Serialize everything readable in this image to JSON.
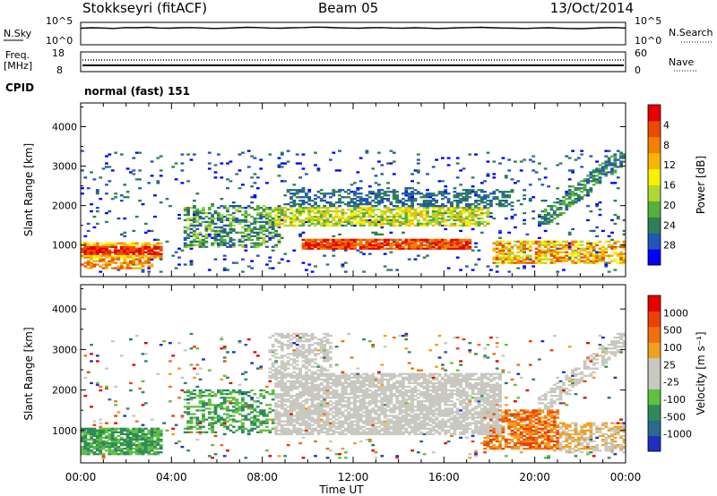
{
  "header": {
    "station": "Stokkseyri (fitACF)",
    "beam": "Beam 05",
    "date": "13/Oct/2014"
  },
  "chart_data": [
    {
      "type": "line",
      "left_label": "N.Sky",
      "right_label": "N.Search",
      "left_ticks": [
        "10^5",
        "10^0"
      ],
      "right_ticks": [
        "10^5",
        "10^0"
      ],
      "series": [
        {
          "values": [
            0.74,
            0.76,
            0.75,
            0.73,
            0.77,
            0.76,
            0.78,
            0.75,
            0.74,
            0.76,
            0.77,
            0.75,
            0.73,
            0.74,
            0.76,
            0.78,
            0.77,
            0.75,
            0.74,
            0.76,
            0.77,
            0.79,
            0.78,
            0.76,
            0.75,
            0.74,
            0.76,
            0.77,
            0.75,
            0.74,
            0.76,
            0.75,
            0.73,
            0.74,
            0.76,
            0.77,
            0.78,
            0.76,
            0.75,
            0.74,
            0.73,
            0.75,
            0.76,
            0.74,
            0.73,
            0.72,
            0.74,
            0.76,
            0.77,
            0.75
          ]
        }
      ]
    },
    {
      "type": "line",
      "left_label": "Freq.",
      "left_unit": "[MHz]",
      "right_label": "Nave",
      "left_ticks": [
        "18",
        "8"
      ],
      "right_ticks": [
        "60",
        "0"
      ]
    },
    {
      "type": "text",
      "left_label": "CPID",
      "value": "normal (fast) 151"
    },
    {
      "type": "heatmap",
      "ylabel": "Slant Range [km]",
      "ylim": [
        200,
        4600
      ],
      "yticks": [
        "1000",
        "2000",
        "3000",
        "4000"
      ],
      "colorbar_label": "Power [dB]",
      "colorbar_ticks": [
        "4",
        "8",
        "12",
        "16",
        "20",
        "24",
        "28"
      ],
      "colors": [
        "#0000ff",
        "#2255b4",
        "#2e7f55",
        "#56b03a",
        "#b0d830",
        "#f7f200",
        "#f5b800",
        "#f08000",
        "#ec4a00",
        "#e60000"
      ]
    },
    {
      "type": "heatmap",
      "ylabel": "Slant Range [km]",
      "ylim": [
        200,
        4600
      ],
      "yticks": [
        "1000",
        "2000",
        "3000",
        "4000"
      ],
      "xlabel": "Time UT",
      "xticks": [
        "00:00",
        "04:00",
        "08:00",
        "12:00",
        "16:00",
        "20:00",
        "00:00"
      ],
      "colorbar_label": "Velocity [m s⁻¹]",
      "colorbar_ticks": [
        "1000",
        "500",
        "100",
        "25",
        "-25",
        "-100",
        "-500",
        "-1000"
      ],
      "colors": [
        "#2030c0",
        "#2a6a8a",
        "#2e8a5a",
        "#60c040",
        "#c8c8c0",
        "#c8c8c0",
        "#f0a020",
        "#f07010",
        "#ec4000",
        "#e60000"
      ]
    }
  ]
}
